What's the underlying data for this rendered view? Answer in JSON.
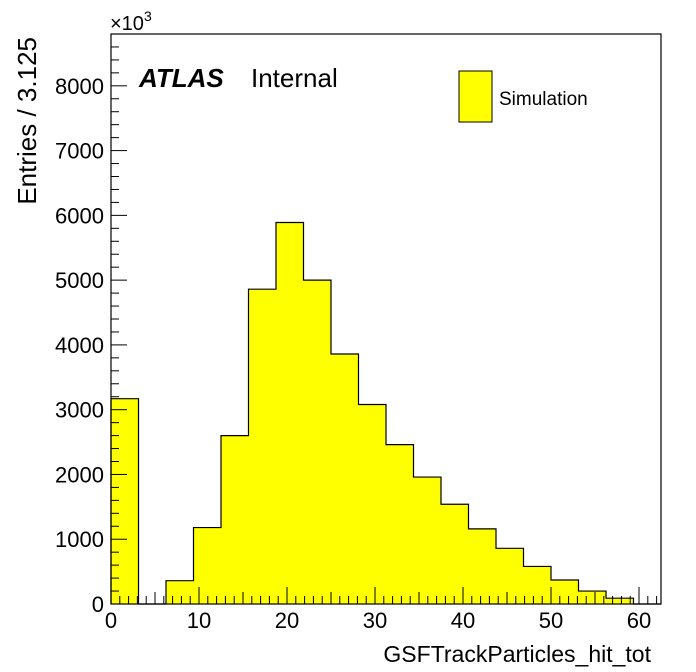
{
  "chart_data": {
    "type": "bar",
    "histogram": true,
    "bin_width": 3.125,
    "bin_edges_start": 0,
    "values": [
      3170,
      0,
      360,
      1180,
      2600,
      4860,
      5890,
      5000,
      3860,
      3080,
      2460,
      1960,
      1540,
      1160,
      860,
      580,
      370,
      200,
      90,
      0
    ],
    "xlim": [
      0,
      62.5
    ],
    "ylim": [
      0,
      8800
    ],
    "xticks": [
      0,
      10,
      20,
      30,
      40,
      50,
      60
    ],
    "yticks": [
      0,
      1000,
      2000,
      3000,
      4000,
      5000,
      6000,
      7000,
      8000
    ],
    "xlabel": "GSFTrackParticles_hit_tot",
    "ylabel": "Entries / 3.125",
    "y_multiplier_base": "×10",
    "y_multiplier_exp": "3",
    "atlas_label": "ATLAS",
    "atlas_sublabel": "Internal",
    "legend": [
      {
        "name": "Simulation",
        "color": "#ffff00"
      }
    ],
    "legend_position": "top-right",
    "fill_color": "#ffff00",
    "grid": false
  }
}
